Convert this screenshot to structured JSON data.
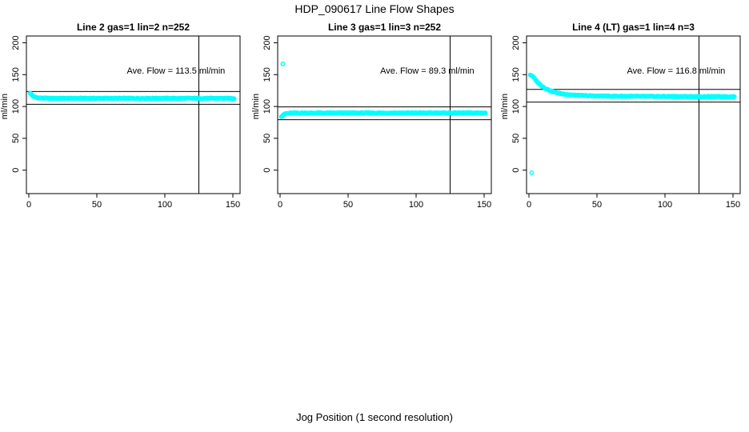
{
  "figure": {
    "title": "HDP_090617  Line Flow Shapes",
    "x_axis_label": "Jog Position (1 second resolution)",
    "y_axis_label": "ml/min",
    "point_color": "#00FFFF",
    "axis_color": "#000000",
    "background_color": "#FFFFFF"
  },
  "chart_data": [
    {
      "type": "scatter",
      "title": "Line 2 gas=1 lin=2 n=252",
      "n": 252,
      "ave_flow": 113.5,
      "ave_flow_label": "Ave. Flow =  113.5  ml/min",
      "xticks": [
        0,
        50,
        100,
        150
      ],
      "yticks": [
        0,
        50,
        100,
        150,
        200
      ],
      "xlim": [
        0,
        155
      ],
      "ylim": [
        0,
        200
      ],
      "ref_lines": [
        123.5,
        103.5
      ],
      "marker_x": 125,
      "series": {
        "name": "flow",
        "profile": [
          [
            1,
            121.5
          ],
          [
            2,
            118.5
          ],
          [
            3,
            116.5
          ],
          [
            4,
            115.2
          ],
          [
            5,
            114.4
          ],
          [
            6,
            113.9
          ],
          [
            8,
            113.4
          ],
          [
            10,
            113.1
          ],
          [
            14,
            112.9
          ],
          [
            20,
            112.8
          ],
          [
            151,
            112.8
          ]
        ]
      },
      "outliers": []
    },
    {
      "type": "scatter",
      "title": "Line 3 gas=1 lin=3 n=252",
      "n": 252,
      "ave_flow": 89.3,
      "ave_flow_label": "Ave. Flow =  89.3  ml/min",
      "xticks": [
        0,
        50,
        100,
        150
      ],
      "yticks": [
        0,
        50,
        100,
        150,
        200
      ],
      "xlim": [
        0,
        155
      ],
      "ylim": [
        0,
        200
      ],
      "ref_lines": [
        99.3,
        79.3
      ],
      "marker_x": 125,
      "series": {
        "name": "flow",
        "profile": [
          [
            1,
            84.5
          ],
          [
            2,
            86.5
          ],
          [
            3,
            87.8
          ],
          [
            4,
            88.6
          ],
          [
            5,
            89.1
          ],
          [
            7,
            89.5
          ],
          [
            10,
            89.7
          ],
          [
            20,
            89.8
          ],
          [
            151,
            89.9
          ]
        ]
      },
      "outliers": [
        [
          2,
          167
        ]
      ]
    },
    {
      "type": "scatter",
      "title": "Line 4 (LT) gas=1 lin=4 n=3",
      "n": 3,
      "ave_flow": 116.8,
      "ave_flow_label": "Ave. Flow =  116.8  ml/min",
      "xticks": [
        0,
        50,
        100,
        150
      ],
      "yticks": [
        0,
        50,
        100,
        150,
        200
      ],
      "xlim": [
        0,
        155
      ],
      "ylim": [
        0,
        200
      ],
      "ref_lines": [
        126.8,
        106.8
      ],
      "marker_x": 125,
      "series": {
        "name": "flow",
        "profile": [
          [
            1,
            150
          ],
          [
            2,
            148.5
          ],
          [
            3,
            146.5
          ],
          [
            4,
            144
          ],
          [
            5,
            141.5
          ],
          [
            6,
            139
          ],
          [
            7,
            136.8
          ],
          [
            8,
            134.8
          ],
          [
            9,
            133
          ],
          [
            10,
            131.3
          ],
          [
            12,
            128.5
          ],
          [
            14,
            126.3
          ],
          [
            16,
            124.5
          ],
          [
            18,
            123
          ],
          [
            20,
            121.8
          ],
          [
            23,
            120.4
          ],
          [
            26,
            119.4
          ],
          [
            30,
            118.4
          ],
          [
            35,
            117.6
          ],
          [
            40,
            117.1
          ],
          [
            50,
            116.5
          ],
          [
            60,
            116.2
          ],
          [
            80,
            115.9
          ],
          [
            100,
            115.7
          ],
          [
            120,
            115.5
          ],
          [
            151,
            115.4
          ]
        ]
      },
      "outliers": [
        [
          2,
          -4
        ]
      ]
    }
  ]
}
